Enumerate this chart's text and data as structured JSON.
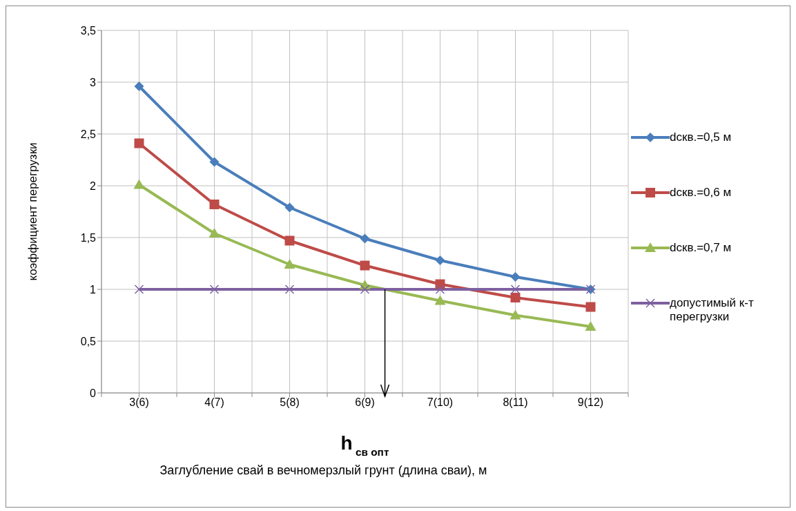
{
  "chart_data": {
    "type": "line",
    "xlabel": "Заглубление свай в вечномерзлый грунт (длина сваи), м",
    "ylabel": "коэффициент перегрузки",
    "annotations": [
      "h$_{св опт}$"
    ],
    "categories": [
      "3(6)",
      "4(7)",
      "5(8)",
      "6(9)",
      "7(10)",
      "8(11)",
      "9(12)"
    ],
    "series": [
      {
        "name": "dскв.=0,5 м",
        "color": "#4a7ebb",
        "marker": "diamond",
        "values": [
          2.96,
          2.23,
          1.79,
          1.49,
          1.28,
          1.12,
          1.0
        ]
      },
      {
        "name": "dскв.=0,6 м",
        "color": "#be4b48",
        "marker": "square",
        "values": [
          2.41,
          1.82,
          1.47,
          1.23,
          1.05,
          0.92,
          0.83
        ]
      },
      {
        "name": "dскв.=0,7 м",
        "color": "#98b954",
        "marker": "triangle",
        "values": [
          2.01,
          1.54,
          1.24,
          1.04,
          0.89,
          0.75,
          0.64
        ]
      },
      {
        "name": "допустимый к-т перегрузки",
        "color": "#7d60a0",
        "marker": "cross",
        "values": [
          1,
          1,
          1,
          1,
          1,
          1,
          1
        ]
      }
    ],
    "ylim": [
      0,
      3.5
    ],
    "yticks": [
      0,
      {
        "value": 0.5,
        "label": "0,5"
      },
      1,
      {
        "value": 1.5,
        "label": "1,5"
      },
      2,
      {
        "value": 2.5,
        "label": "2,5"
      },
      3,
      {
        "value": 3.5,
        "label": "3,5"
      }
    ],
    "grid": true,
    "legend": "right",
    "line_style": "solid"
  }
}
